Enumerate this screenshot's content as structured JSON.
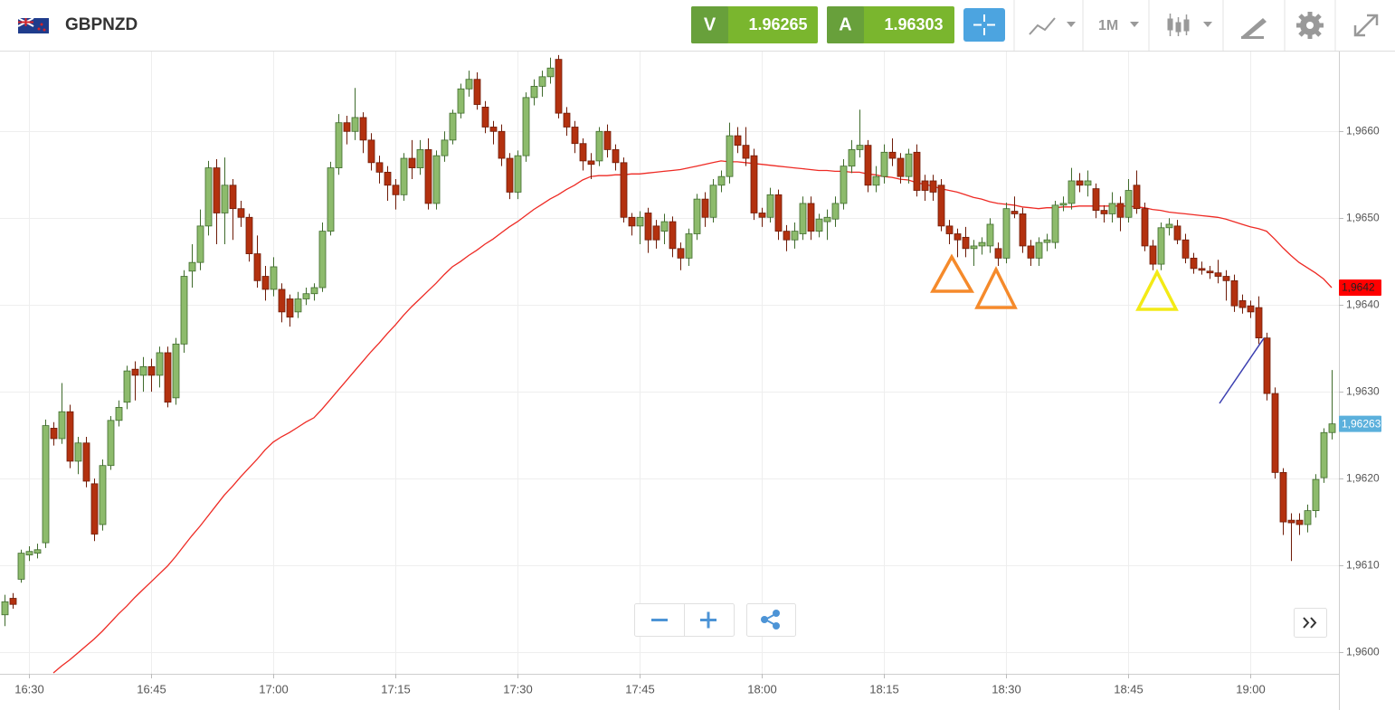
{
  "header": {
    "symbol": "GBPNZD",
    "bid_label": "V",
    "bid": 1.96265,
    "ask_label": "A",
    "ask": 1.96303,
    "timeframe": "1M"
  },
  "chart_data": {
    "type": "candlestick",
    "x": [
      null,
      null,
      null,
      "16:30",
      null,
      null,
      null,
      null,
      null,
      null,
      null,
      null,
      null,
      null,
      null,
      null,
      null,
      null,
      "16:45",
      null,
      null,
      null,
      null,
      null,
      null,
      null,
      null,
      null,
      null,
      null,
      null,
      null,
      null,
      "17:00",
      null,
      null,
      null,
      null,
      null,
      null,
      null,
      null,
      null,
      null,
      null,
      null,
      null,
      null,
      "17:15",
      null,
      null,
      null,
      null,
      null,
      null,
      null,
      null,
      null,
      null,
      null,
      null,
      null,
      null,
      "17:30",
      null,
      null,
      null,
      null,
      null,
      null,
      null,
      null,
      null,
      null,
      null,
      null,
      null,
      null,
      "17:45",
      null,
      null,
      null,
      null,
      null,
      null,
      null,
      null,
      null,
      null,
      null,
      null,
      null,
      null,
      "18:00",
      null,
      null,
      null,
      null,
      null,
      null,
      null,
      null,
      null,
      null,
      null,
      null,
      null,
      null,
      "18:15",
      null,
      null,
      null,
      null,
      null,
      null,
      null,
      null,
      null,
      null,
      null,
      null,
      null,
      null,
      "18:30",
      null,
      null,
      null,
      null,
      null,
      null,
      null,
      null,
      null,
      null,
      null,
      null,
      null,
      null,
      "18:45",
      null,
      null,
      null,
      null,
      null,
      null,
      null,
      null,
      null,
      null,
      null,
      null,
      null,
      null,
      "19:00",
      null,
      null,
      null,
      null,
      null,
      null,
      null,
      null,
      null,
      null
    ],
    "ohlc": [
      [
        1.96043,
        1.96066,
        1.9603,
        1.96058
      ],
      [
        1.96062,
        1.96068,
        1.9605,
        1.96055
      ],
      [
        1.96084,
        1.96118,
        1.9608,
        1.96114
      ],
      [
        1.96112,
        1.96122,
        1.96105,
        1.96116
      ],
      [
        1.96114,
        1.96125,
        1.96108,
        1.96118
      ],
      [
        1.96126,
        1.96268,
        1.9612,
        1.96261
      ],
      [
        1.96258,
        1.96265,
        1.96238,
        1.96246
      ],
      [
        1.96246,
        1.9631,
        1.9624,
        1.96277
      ],
      [
        1.96277,
        1.96285,
        1.96212,
        1.9622
      ],
      [
        1.9622,
        1.96248,
        1.96205,
        1.96241
      ],
      [
        1.96241,
        1.96248,
        1.9619,
        1.96197
      ],
      [
        1.96194,
        1.962,
        1.96128,
        1.96136
      ],
      [
        1.96147,
        1.96222,
        1.9614,
        1.96215
      ],
      [
        1.96215,
        1.96272,
        1.9621,
        1.96267
      ],
      [
        1.96267,
        1.9629,
        1.9626,
        1.96282
      ],
      [
        1.96288,
        1.9633,
        1.9628,
        1.96324
      ],
      [
        1.96326,
        1.96335,
        1.9629,
        1.96319
      ],
      [
        1.96319,
        1.9634,
        1.963,
        1.96329
      ],
      [
        1.96329,
        1.96338,
        1.963,
        1.96319
      ],
      [
        1.96319,
        1.96352,
        1.96305,
        1.96345
      ],
      [
        1.96345,
        1.96352,
        1.96282,
        1.96288
      ],
      [
        1.96293,
        1.96362,
        1.96285,
        1.96355
      ],
      [
        1.96355,
        1.9644,
        1.96345,
        1.96433
      ],
      [
        1.96439,
        1.9647,
        1.9642,
        1.96449
      ],
      [
        1.96449,
        1.9651,
        1.9644,
        1.96491
      ],
      [
        1.96491,
        1.96566,
        1.9648,
        1.96558
      ],
      [
        1.96558,
        1.96568,
        1.9647,
        1.96506
      ],
      [
        1.96506,
        1.9657,
        1.9647,
        1.96538
      ],
      [
        1.96538,
        1.96545,
        1.96475,
        1.96511
      ],
      [
        1.96511,
        1.9652,
        1.9649,
        1.96501
      ],
      [
        1.96501,
        1.96505,
        1.9645,
        1.96459
      ],
      [
        1.96459,
        1.9648,
        1.9642,
        1.96428
      ],
      [
        1.96433,
        1.96445,
        1.96405,
        1.96418
      ],
      [
        1.96418,
        1.96455,
        1.9641,
        1.96444
      ],
      [
        1.96418,
        1.96425,
        1.9638,
        1.96392
      ],
      [
        1.96407,
        1.96412,
        1.96375,
        1.96386
      ],
      [
        1.96392,
        1.96415,
        1.96385,
        1.96407
      ],
      [
        1.96407,
        1.9642,
        1.964,
        1.96413
      ],
      [
        1.96413,
        1.96425,
        1.96405,
        1.9642
      ],
      [
        1.9642,
        1.96495,
        1.96415,
        1.96485
      ],
      [
        1.96485,
        1.96565,
        1.9648,
        1.96558
      ],
      [
        1.96558,
        1.9662,
        1.9655,
        1.9661
      ],
      [
        1.9661,
        1.96618,
        1.96585,
        1.966
      ],
      [
        1.966,
        1.9665,
        1.9659,
        1.96616
      ],
      [
        1.96616,
        1.96622,
        1.96575,
        1.9659
      ],
      [
        1.9659,
        1.96598,
        1.96555,
        1.96564
      ],
      [
        1.96564,
        1.96572,
        1.9654,
        1.96553
      ],
      [
        1.96553,
        1.9656,
        1.9652,
        1.96538
      ],
      [
        1.96538,
        1.96545,
        1.9651,
        1.96527
      ],
      [
        1.96527,
        1.96575,
        1.9652,
        1.96569
      ],
      [
        1.96569,
        1.9659,
        1.96545,
        1.96558
      ],
      [
        1.96558,
        1.9659,
        1.9655,
        1.96579
      ],
      [
        1.96579,
        1.96592,
        1.9651,
        1.96517
      ],
      [
        1.96517,
        1.96578,
        1.9651,
        1.96572
      ],
      [
        1.96572,
        1.966,
        1.96565,
        1.9659
      ],
      [
        1.9659,
        1.96625,
        1.96585,
        1.96621
      ],
      [
        1.96621,
        1.96655,
        1.96615,
        1.96649
      ],
      [
        1.96649,
        1.9667,
        1.9664,
        1.9666
      ],
      [
        1.9666,
        1.96668,
        1.96625,
        1.96631
      ],
      [
        1.96628,
        1.96635,
        1.96598,
        1.96605
      ],
      [
        1.96605,
        1.96612,
        1.96585,
        1.966
      ],
      [
        1.966,
        1.96608,
        1.9656,
        1.96569
      ],
      [
        1.96569,
        1.96575,
        1.96522,
        1.9653
      ],
      [
        1.9653,
        1.96578,
        1.96522,
        1.96572
      ],
      [
        1.96572,
        1.96645,
        1.96565,
        1.96639
      ],
      [
        1.96639,
        1.9666,
        1.9663,
        1.96652
      ],
      [
        1.96652,
        1.9667,
        1.9664,
        1.96663
      ],
      [
        1.96663,
        1.96685,
        1.96655,
        1.96673
      ],
      [
        1.96683,
        1.96688,
        1.96615,
        1.96621
      ],
      [
        1.96621,
        1.96628,
        1.96595,
        1.96605
      ],
      [
        1.96605,
        1.96612,
        1.96575,
        1.96586
      ],
      [
        1.96586,
        1.96592,
        1.96555,
        1.96566
      ],
      [
        1.96566,
        1.96575,
        1.96545,
        1.96562
      ],
      [
        1.96566,
        1.96605,
        1.9656,
        1.966
      ],
      [
        1.966,
        1.96608,
        1.9657,
        1.96579
      ],
      [
        1.96579,
        1.96585,
        1.96555,
        1.96564
      ],
      [
        1.96564,
        1.9657,
        1.96495,
        1.96501
      ],
      [
        1.96501,
        1.96506,
        1.9648,
        1.96491
      ],
      [
        1.96491,
        1.96508,
        1.9647,
        1.96501
      ],
      [
        1.96506,
        1.96512,
        1.9646,
        1.96475
      ],
      [
        1.96491,
        1.96498,
        1.96465,
        1.96475
      ],
      [
        1.96485,
        1.96505,
        1.9647,
        1.96496
      ],
      [
        1.96496,
        1.96502,
        1.96455,
        1.96465
      ],
      [
        1.96465,
        1.96472,
        1.9644,
        1.96454
      ],
      [
        1.96454,
        1.96488,
        1.96445,
        1.96482
      ],
      [
        1.96482,
        1.96528,
        1.96475,
        1.96522
      ],
      [
        1.96522,
        1.9653,
        1.9649,
        1.96501
      ],
      [
        1.96501,
        1.96545,
        1.96495,
        1.96538
      ],
      [
        1.96538,
        1.96555,
        1.9653,
        1.96548
      ],
      [
        1.96548,
        1.9661,
        1.9654,
        1.96595
      ],
      [
        1.96595,
        1.96605,
        1.96575,
        1.96584
      ],
      [
        1.96584,
        1.96605,
        1.9656,
        1.96569
      ],
      [
        1.96572,
        1.9658,
        1.96498,
        1.96506
      ],
      [
        1.96506,
        1.96512,
        1.9649,
        1.96501
      ],
      [
        1.96501,
        1.96535,
        1.96495,
        1.96527
      ],
      [
        1.96527,
        1.96533,
        1.96475,
        1.96485
      ],
      [
        1.96485,
        1.96492,
        1.96462,
        1.96475
      ],
      [
        1.96475,
        1.96495,
        1.96465,
        1.96485
      ],
      [
        1.96482,
        1.96525,
        1.96475,
        1.96517
      ],
      [
        1.96517,
        1.96525,
        1.96475,
        1.96485
      ],
      [
        1.96485,
        1.96505,
        1.96478,
        1.96499
      ],
      [
        1.96496,
        1.9651,
        1.96475,
        1.96501
      ],
      [
        1.96499,
        1.96525,
        1.9649,
        1.96517
      ],
      [
        1.96517,
        1.96568,
        1.9651,
        1.9656
      ],
      [
        1.9656,
        1.9659,
        1.96552,
        1.96579
      ],
      [
        1.96579,
        1.96625,
        1.9657,
        1.96584
      ],
      [
        1.96584,
        1.9659,
        1.9653,
        1.96538
      ],
      [
        1.96538,
        1.9656,
        1.9653,
        1.96548
      ],
      [
        1.96548,
        1.96585,
        1.9654,
        1.96576
      ],
      [
        1.96576,
        1.96592,
        1.9656,
        1.96569
      ],
      [
        1.96569,
        1.96575,
        1.9654,
        1.96548
      ],
      [
        1.96548,
        1.9658,
        1.9654,
        1.96574
      ],
      [
        1.96576,
        1.96585,
        1.96525,
        1.96532
      ],
      [
        1.96543,
        1.9655,
        1.9652,
        1.96532
      ],
      [
        1.96543,
        1.9655,
        1.9652,
        1.9653
      ],
      [
        1.96538,
        1.96545,
        1.96485,
        1.96491
      ],
      [
        1.96491,
        1.96498,
        1.9647,
        1.96482
      ],
      [
        1.96482,
        1.96488,
        1.96455,
        1.96475
      ],
      [
        1.96478,
        1.9649,
        1.96455,
        1.96465
      ],
      [
        1.96465,
        1.96475,
        1.96445,
        1.96468
      ],
      [
        1.96468,
        1.96478,
        1.96458,
        1.96472
      ],
      [
        1.96468,
        1.965,
        1.9646,
        1.96493
      ],
      [
        1.96465,
        1.96472,
        1.96445,
        1.96454
      ],
      [
        1.96454,
        1.96518,
        1.96448,
        1.96511
      ],
      [
        1.96508,
        1.96525,
        1.965,
        1.96505
      ],
      [
        1.96505,
        1.96512,
        1.9646,
        1.96468
      ],
      [
        1.96468,
        1.96475,
        1.96445,
        1.96454
      ],
      [
        1.96454,
        1.96478,
        1.96445,
        1.96472
      ],
      [
        1.96472,
        1.96482,
        1.96462,
        1.96475
      ],
      [
        1.96472,
        1.9652,
        1.96465,
        1.96515
      ],
      [
        1.96515,
        1.96525,
        1.96508,
        1.96517
      ],
      [
        1.96517,
        1.96558,
        1.9651,
        1.96543
      ],
      [
        1.96543,
        1.96552,
        1.9653,
        1.96538
      ],
      [
        1.96538,
        1.96555,
        1.96525,
        1.96543
      ],
      [
        1.96534,
        1.9654,
        1.965,
        1.96509
      ],
      [
        1.96509,
        1.96515,
        1.96495,
        1.96505
      ],
      [
        1.96505,
        1.9653,
        1.96495,
        1.96517
      ],
      [
        1.96517,
        1.96525,
        1.96485,
        1.96501
      ],
      [
        1.96501,
        1.96545,
        1.96495,
        1.96532
      ],
      [
        1.96538,
        1.96555,
        1.96505,
        1.96511
      ],
      [
        1.96511,
        1.96518,
        1.96462,
        1.96468
      ],
      [
        1.96468,
        1.96475,
        1.9644,
        1.96447
      ],
      [
        1.96447,
        1.96495,
        1.9644,
        1.96489
      ],
      [
        1.96489,
        1.965,
        1.9648,
        1.96493
      ],
      [
        1.96491,
        1.96498,
        1.9647,
        1.96475
      ],
      [
        1.96475,
        1.96482,
        1.96448,
        1.96454
      ],
      [
        1.96454,
        1.9646,
        1.96436,
        1.96442
      ],
      [
        1.96442,
        1.9645,
        1.96435,
        1.9644
      ],
      [
        1.96439,
        1.96445,
        1.9643,
        1.96437
      ],
      [
        1.96437,
        1.96452,
        1.96425,
        1.96433
      ],
      [
        1.96433,
        1.9644,
        1.96405,
        1.96428
      ],
      [
        1.96428,
        1.96435,
        1.96392,
        1.96399
      ],
      [
        1.96405,
        1.96412,
        1.9639,
        1.96397
      ],
      [
        1.96399,
        1.96405,
        1.96385,
        1.96392
      ],
      [
        1.96397,
        1.9641,
        1.96355,
        1.96362
      ],
      [
        1.96362,
        1.96368,
        1.9629,
        1.96298
      ],
      [
        1.96298,
        1.96305,
        1.962,
        1.96207
      ],
      [
        1.96207,
        1.96212,
        1.96135,
        1.9615
      ],
      [
        1.96152,
        1.9616,
        1.96105,
        1.96149
      ],
      [
        1.96152,
        1.9616,
        1.96135,
        1.96147
      ],
      [
        1.96147,
        1.9617,
        1.96138,
        1.96163
      ],
      [
        1.96163,
        1.96205,
        1.96155,
        1.96199
      ],
      [
        1.96201,
        1.96258,
        1.96195,
        1.96253
      ],
      [
        1.96253,
        1.96325,
        1.96245,
        1.96263
      ]
    ],
    "up_color": "#8dbb6c",
    "down_color": "#b3310f",
    "ma": {
      "color": "#ee2a24",
      "values": [
        null,
        null,
        null,
        null,
        null,
        null,
        1.95976,
        1.95984,
        1.95991,
        1.95999,
        1.96007,
        1.96015,
        1.96024,
        1.96034,
        1.96044,
        1.96053,
        1.96063,
        1.96072,
        1.96081,
        1.9609,
        1.96099,
        1.9611,
        1.96122,
        1.96134,
        1.96145,
        1.96157,
        1.96169,
        1.96181,
        1.96191,
        1.96202,
        1.96212,
        1.96222,
        1.96233,
        1.96242,
        1.96248,
        1.96253,
        1.96259,
        1.96265,
        1.9627,
        1.9628,
        1.96291,
        1.96302,
        1.96313,
        1.96324,
        1.96335,
        1.96346,
        1.96356,
        1.96367,
        1.96377,
        1.96388,
        1.96398,
        1.96407,
        1.96416,
        1.96425,
        1.96435,
        1.96444,
        1.9645,
        1.96457,
        1.96463,
        1.9647,
        1.96476,
        1.96483,
        1.9649,
        1.96496,
        1.96503,
        1.9651,
        1.96516,
        1.96522,
        1.96527,
        1.96533,
        1.96538,
        1.96544,
        1.96548,
        1.96549,
        1.96549,
        1.9655,
        1.9655,
        1.96551,
        1.96551,
        1.96552,
        1.96553,
        1.96554,
        1.96555,
        1.96556,
        1.96558,
        1.9656,
        1.96562,
        1.96564,
        1.96566,
        1.96565,
        1.96565,
        1.96564,
        1.96563,
        1.96562,
        1.96561,
        1.9656,
        1.96559,
        1.96558,
        1.96557,
        1.96556,
        1.96555,
        1.96555,
        1.96554,
        1.96554,
        1.96553,
        1.96553,
        1.96551,
        1.9655,
        1.96548,
        1.96547,
        1.96545,
        1.96544,
        1.96541,
        1.96539,
        1.96537,
        1.96534,
        1.96532,
        1.9653,
        1.96527,
        1.96524,
        1.96522,
        1.96519,
        1.96517,
        1.96516,
        1.96515,
        1.96513,
        1.96512,
        1.96511,
        1.96512,
        1.96512,
        1.96513,
        1.96513,
        1.96514,
        1.96514,
        1.96514,
        1.96514,
        1.96514,
        1.96514,
        1.96514,
        1.96513,
        1.96512,
        1.9651,
        1.96509,
        1.96507,
        1.96506,
        1.96505,
        1.96504,
        1.96503,
        1.96502,
        1.96501,
        1.96499,
        1.96496,
        1.96493,
        1.9649,
        1.96488,
        1.96485,
        1.96476,
        1.96466,
        1.96457,
        1.96449,
        1.96443,
        1.96437,
        1.9643,
        1.9642
      ]
    },
    "ylim": [
      1.95975,
      1.96692
    ],
    "yticks": [
      {
        "value": 1.96,
        "label": "1,9600"
      },
      {
        "value": 1.961,
        "label": "1,9610"
      },
      {
        "value": 1.962,
        "label": "1,9620"
      },
      {
        "value": 1.963,
        "label": "1,9630"
      },
      {
        "value": 1.964,
        "label": "1,9640"
      },
      {
        "value": 1.965,
        "label": "1,9650"
      },
      {
        "value": 1.966,
        "label": "1,9660"
      }
    ],
    "grid": true,
    "last_price": {
      "value": 1.96263,
      "label": "1,96263",
      "color": "#5bb0dc"
    },
    "ma_last": {
      "value": 1.9642,
      "label": "1,9642",
      "color": "#ff0000"
    }
  }
}
